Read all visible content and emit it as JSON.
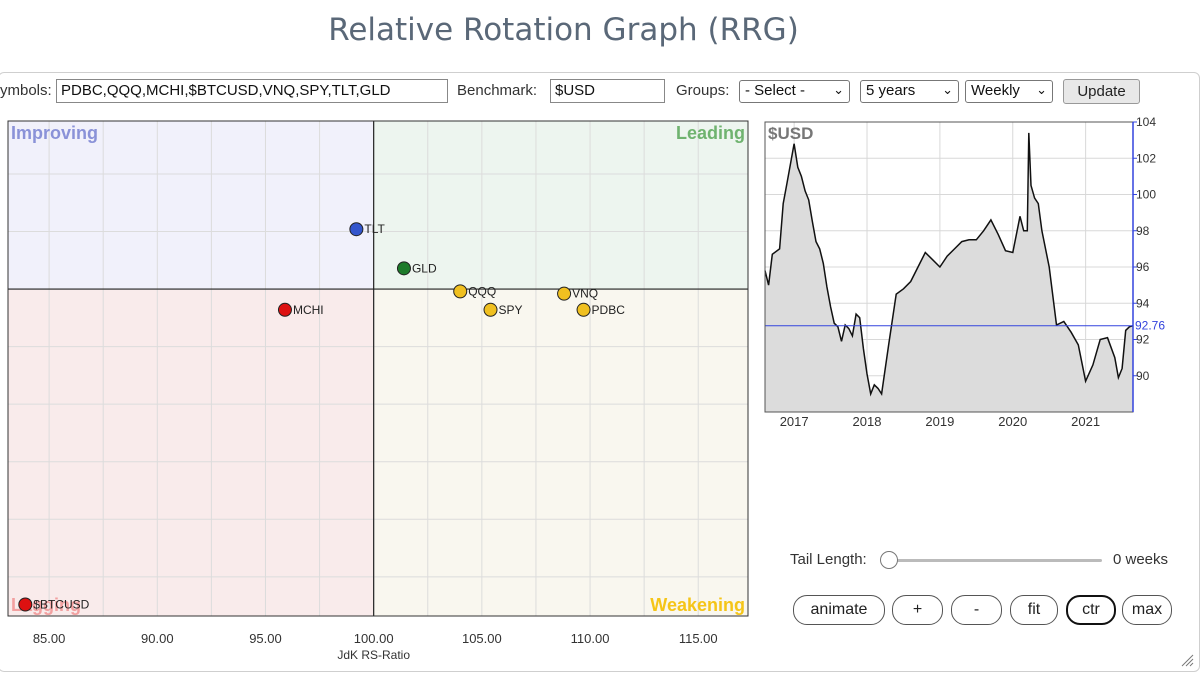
{
  "page_title": "Relative Rotation Graph (RRG)",
  "controls": {
    "symbols_label": "ymbols:",
    "symbols_value": "PDBC,QQQ,MCHI,$BTCUSD,VNQ,SPY,TLT,GLD",
    "benchmark_label": "Benchmark:",
    "benchmark_value": "$USD",
    "groups_label": "Groups:",
    "groups_value": "- Select -",
    "period_value": "5 years",
    "frequency_value": "Weekly",
    "update_label": "Update"
  },
  "tail": {
    "label": "Tail Length:",
    "value": 0,
    "value_text": "0 weeks"
  },
  "buttons": {
    "animate": "animate",
    "plus": "+",
    "minus": "-",
    "fit": "fit",
    "ctr": "ctr",
    "max": "max"
  },
  "chart_data": [
    {
      "type": "scatter",
      "xlabel": "JdK RS-Ratio",
      "ylabel": "",
      "xlim": [
        83.1,
        117.3
      ],
      "ylim": [
        85.8,
        107.3
      ],
      "xticks": [
        "85.00",
        "90.00",
        "95.00",
        "100.00",
        "105.00",
        "110.00",
        "115.00"
      ],
      "center": [
        100,
        100
      ],
      "quadrants": {
        "improving": {
          "label": "Improving",
          "color": "#8a92d8",
          "fill": "#f1f1fb"
        },
        "leading": {
          "label": "Leading",
          "color": "#6fb36f",
          "fill": "#edf5ef"
        },
        "weakening": {
          "label": "Weakening",
          "color": "#f5c518",
          "fill": "#f9f7ef"
        },
        "lagging": {
          "label": "Lagging",
          "color": "#f2a0a0",
          "fill": "#f9ebeb"
        }
      },
      "points": [
        {
          "name": "TLT",
          "x": 99.2,
          "y": 102.6,
          "color": "#3355cc"
        },
        {
          "name": "GLD",
          "x": 101.4,
          "y": 100.9,
          "color": "#1d7a2a"
        },
        {
          "name": "MCHI",
          "x": 95.9,
          "y": 99.1,
          "color": "#dd1111"
        },
        {
          "name": "QQQ",
          "x": 104.0,
          "y": 99.9,
          "color": "#f0c020"
        },
        {
          "name": "SPY",
          "x": 105.4,
          "y": 99.1,
          "color": "#f0c020"
        },
        {
          "name": "VNQ",
          "x": 108.8,
          "y": 99.8,
          "color": "#f0c020"
        },
        {
          "name": "PDBC",
          "x": 109.7,
          "y": 99.1,
          "color": "#f0c020"
        },
        {
          "name": "$BTCUSD",
          "x": 83.9,
          "y": 86.3,
          "color": "#dd1111"
        }
      ]
    },
    {
      "type": "area",
      "title": "$USD",
      "ylim": [
        88,
        104
      ],
      "yticks": [
        104,
        102,
        100,
        98,
        96,
        94,
        92,
        90
      ],
      "last_value": 92.76,
      "last_value_text": "92.76",
      "xlim": [
        2016.6,
        2021.65
      ],
      "xticks": [
        {
          "label": "2017",
          "x": 2017.0
        },
        {
          "label": "2018",
          "x": 2018.0
        },
        {
          "label": "2019",
          "x": 2019.0
        },
        {
          "label": "2020",
          "x": 2020.0
        },
        {
          "label": "2021",
          "x": 2021.0
        }
      ],
      "x": [
        2016.6,
        2016.65,
        2016.7,
        2016.8,
        2016.85,
        2016.9,
        2016.95,
        2017.0,
        2017.05,
        2017.1,
        2017.15,
        2017.2,
        2017.25,
        2017.3,
        2017.35,
        2017.4,
        2017.45,
        2017.5,
        2017.55,
        2017.6,
        2017.65,
        2017.7,
        2017.75,
        2017.8,
        2017.85,
        2017.9,
        2017.95,
        2018.0,
        2018.05,
        2018.1,
        2018.15,
        2018.2,
        2018.3,
        2018.4,
        2018.5,
        2018.6,
        2018.7,
        2018.8,
        2018.9,
        2019.0,
        2019.1,
        2019.2,
        2019.3,
        2019.4,
        2019.5,
        2019.6,
        2019.7,
        2019.8,
        2019.9,
        2020.0,
        2020.1,
        2020.15,
        2020.2,
        2020.22,
        2020.25,
        2020.3,
        2020.35,
        2020.4,
        2020.5,
        2020.6,
        2020.7,
        2020.8,
        2020.9,
        2021.0,
        2021.1,
        2021.2,
        2021.3,
        2021.4,
        2021.45,
        2021.5,
        2021.55,
        2021.6,
        2021.65
      ],
      "values": [
        95.8,
        95,
        96.7,
        97,
        99.5,
        100.6,
        101.7,
        102.8,
        101.5,
        101,
        100.2,
        99.7,
        98.5,
        97.4,
        97.0,
        96.2,
        94.9,
        93.8,
        92.9,
        92.7,
        91.9,
        92.8,
        92.6,
        92.2,
        93.4,
        93.2,
        91.5,
        90.1,
        89.0,
        89.5,
        89.3,
        89.0,
        91.8,
        94.5,
        94.8,
        95.2,
        96.0,
        96.8,
        96.4,
        96.0,
        96.6,
        97.0,
        97.4,
        97.5,
        97.5,
        98.0,
        98.6,
        97.8,
        96.9,
        96.8,
        98.8,
        98.0,
        98.0,
        103.4,
        100.5,
        99.8,
        99.5,
        98.0,
        96.0,
        92.8,
        93.0,
        92.4,
        91.7,
        89.7,
        90.6,
        92.0,
        92.1,
        91.0,
        89.9,
        90.4,
        92.5,
        92.7,
        92.76
      ]
    }
  ]
}
